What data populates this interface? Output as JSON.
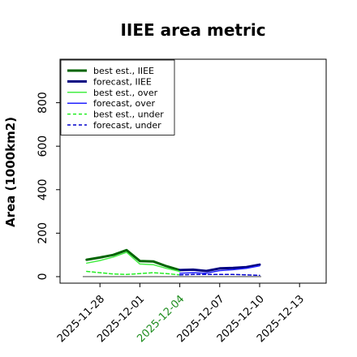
{
  "chart_data": {
    "type": "line",
    "title": "IIEE area metric",
    "xlabel": "",
    "ylabel": "Area (1000km2)",
    "ylim": [
      -30,
      1000
    ],
    "xlim": [
      "2025-11-25",
      "2025-12-15"
    ],
    "y_ticks": [
      0,
      200,
      400,
      600,
      800
    ],
    "x_ticks": [
      {
        "date": "2025-11-28",
        "label": "2025-11-28",
        "color": "#000000"
      },
      {
        "date": "2025-12-01",
        "label": "2025-12-01",
        "color": "#000000"
      },
      {
        "date": "2025-12-04",
        "label": "2025-12-04",
        "color": "#1e8c1e"
      },
      {
        "date": "2025-12-07",
        "label": "2025-12-07",
        "color": "#000000"
      },
      {
        "date": "2025-12-10",
        "label": "2025-12-10",
        "color": "#000000"
      },
      {
        "date": "2025-12-13",
        "label": "2025-12-13",
        "color": "#000000"
      }
    ],
    "reference_line": {
      "y": 0,
      "color": "#555555"
    },
    "legend_position": "upper-left",
    "grid": false,
    "series": [
      {
        "name": "best est., IIEE",
        "color": "#006400",
        "style": "solid",
        "width": 3,
        "x": [
          "2025-11-27",
          "2025-11-28",
          "2025-11-29",
          "2025-11-30",
          "2025-12-01",
          "2025-12-02",
          "2025-12-03",
          "2025-12-04"
        ],
        "values": [
          78,
          88,
          100,
          122,
          72,
          70,
          48,
          30
        ]
      },
      {
        "name": "forecast, IIEE",
        "color": "#000080",
        "style": "solid",
        "width": 3,
        "x": [
          "2025-12-04",
          "2025-12-05",
          "2025-12-06",
          "2025-12-07",
          "2025-12-08",
          "2025-12-09",
          "2025-12-10"
        ],
        "values": [
          30,
          32,
          26,
          38,
          40,
          44,
          55
        ]
      },
      {
        "name": "best est., over",
        "color": "#44ee44",
        "style": "solid",
        "width": 1.5,
        "x": [
          "2025-11-27",
          "2025-11-28",
          "2025-11-29",
          "2025-11-30",
          "2025-12-01",
          "2025-12-02",
          "2025-12-03",
          "2025-12-04"
        ],
        "values": [
          62,
          74,
          90,
          112,
          58,
          55,
          38,
          24
        ]
      },
      {
        "name": "forecast, over",
        "color": "#2222ff",
        "style": "solid",
        "width": 1.5,
        "x": [
          "2025-12-04",
          "2025-12-05",
          "2025-12-06",
          "2025-12-07",
          "2025-12-08",
          "2025-12-09",
          "2025-12-10"
        ],
        "values": [
          16,
          18,
          16,
          28,
          32,
          38,
          50
        ]
      },
      {
        "name": "best est., under",
        "color": "#22ee22",
        "style": "dashed",
        "width": 1.5,
        "x": [
          "2025-11-27",
          "2025-11-28",
          "2025-11-29",
          "2025-11-30",
          "2025-12-01",
          "2025-12-02",
          "2025-12-03",
          "2025-12-04"
        ],
        "values": [
          24,
          18,
          12,
          10,
          14,
          18,
          14,
          8
        ]
      },
      {
        "name": "forecast, under",
        "color": "#0000cc",
        "style": "dashed",
        "width": 1.5,
        "x": [
          "2025-12-04",
          "2025-12-05",
          "2025-12-06",
          "2025-12-07",
          "2025-12-08",
          "2025-12-09",
          "2025-12-10"
        ],
        "values": [
          8,
          10,
          10,
          10,
          10,
          8,
          6
        ]
      }
    ]
  }
}
